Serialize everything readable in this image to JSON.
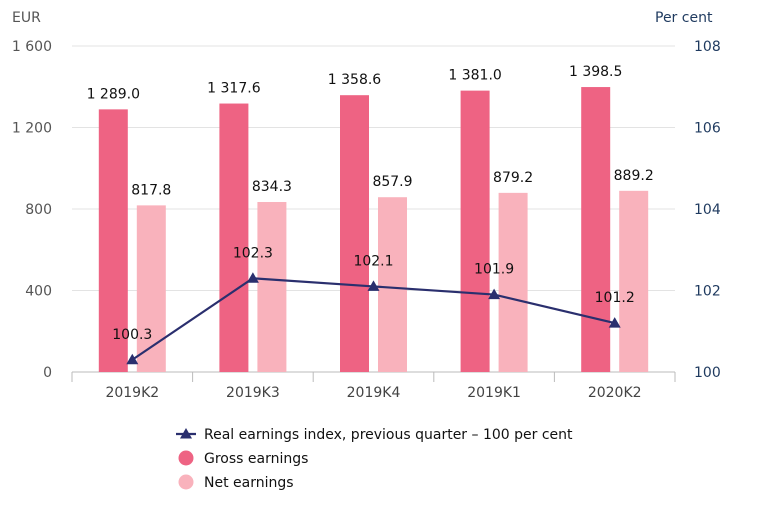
{
  "chart_data": {
    "type": "bar",
    "categories": [
      "2019K2",
      "2019K3",
      "2019K4",
      "2019K1",
      "2020K2"
    ],
    "left_axis": {
      "unit": "EUR",
      "ylim": [
        0,
        1600
      ],
      "ticks": [
        "0",
        "400",
        "800",
        "1 200",
        "1 600"
      ]
    },
    "right_axis": {
      "unit": "Per cent",
      "ylim": [
        100,
        108
      ],
      "ticks": [
        "100",
        "102",
        "104",
        "106",
        "108"
      ]
    },
    "grid": true,
    "legend_position": "bottom",
    "series": [
      {
        "name": "Gross earnings",
        "type": "bar",
        "axis": "left",
        "color": "#ee6383",
        "values": [
          1289.0,
          1317.6,
          1358.6,
          1381.0,
          1398.5
        ],
        "labels": [
          "1 289.0",
          "1 317.6",
          "1 358.6",
          "1 381.0",
          "1 398.5"
        ]
      },
      {
        "name": "Net earnings",
        "type": "bar",
        "axis": "left",
        "color": "#f9b2bc",
        "values": [
          817.8,
          834.3,
          857.9,
          879.2,
          889.2
        ],
        "labels": [
          "817.8",
          "834.3",
          "857.9",
          "879.2",
          "889.2"
        ]
      },
      {
        "name": "Real earnings index, previous quarter – 100 per cent",
        "type": "line",
        "axis": "right",
        "color": "#2a2f6e",
        "marker": "triangle",
        "values": [
          100.3,
          102.3,
          102.1,
          101.9,
          101.2
        ],
        "labels": [
          "100.3",
          "102.3",
          "102.1",
          "101.9",
          "101.2"
        ]
      }
    ],
    "legend_order": [
      2,
      0,
      1
    ]
  }
}
